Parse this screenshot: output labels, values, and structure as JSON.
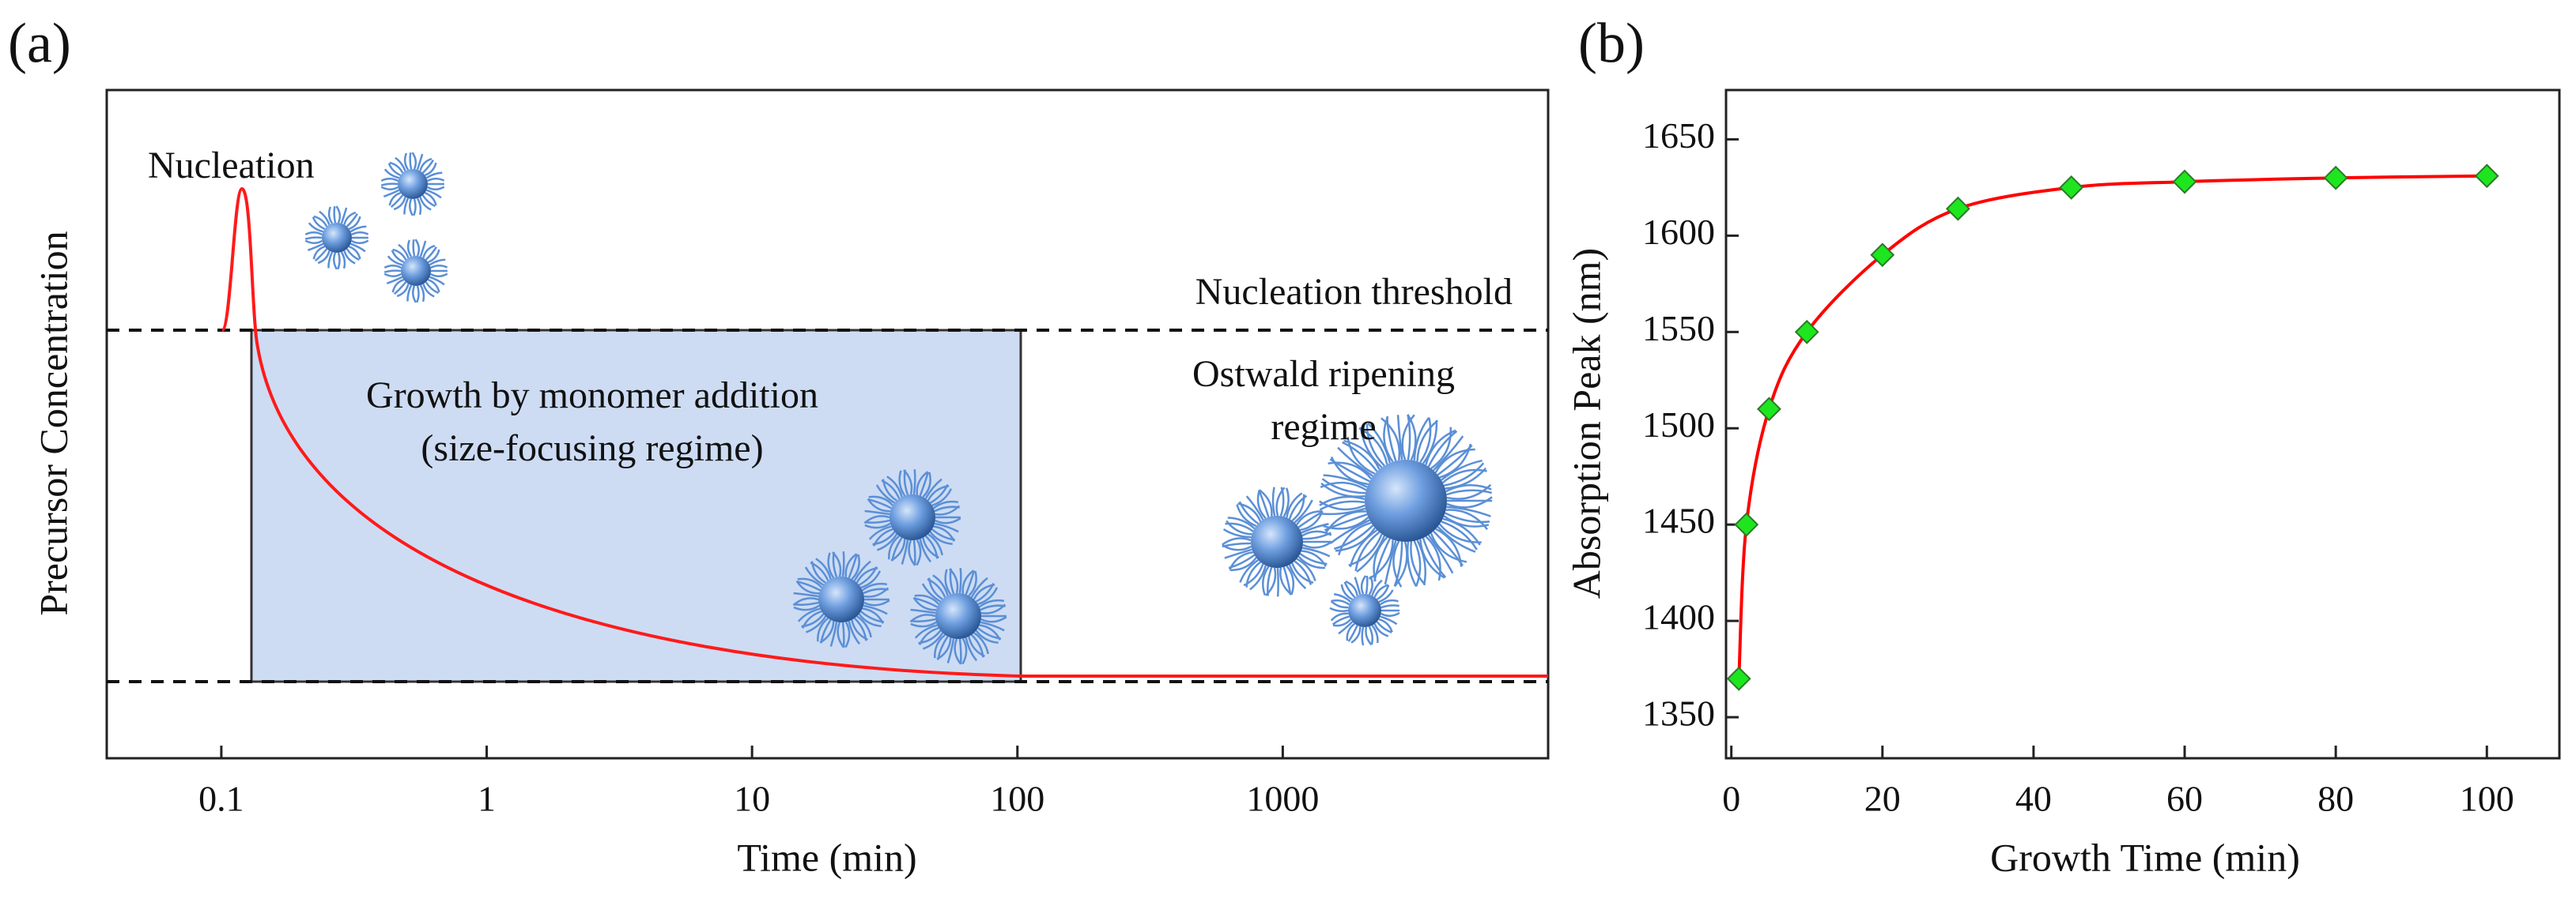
{
  "chart_data": [
    {
      "type": "schematic",
      "panel_label": "(a)",
      "x_label": "Time (min)",
      "y_label": "Precursor Concentration",
      "xscale": "log",
      "xlim": [
        0.037,
        10000
      ],
      "xticks": [
        0.1,
        1,
        10,
        100,
        1000
      ],
      "annotations": [
        "Nucleation",
        "Nucleation threshold",
        "Growth by monomer addition",
        "(size-focusing regime)",
        "Ostwald ripening",
        "regime"
      ]
    },
    {
      "type": "line",
      "panel_label": "(b)",
      "x_label": "Growth Time (min)",
      "y_label": "Absorption Peak (nm)",
      "xlim": [
        -0.7,
        109.6
      ],
      "xticks": [
        0,
        20,
        40,
        60,
        80,
        100
      ],
      "ylim": [
        1328.7,
        1675.6
      ],
      "yticks": [
        1350,
        1400,
        1450,
        1500,
        1550,
        1600,
        1650
      ],
      "x": [
        1,
        2,
        5,
        10,
        20,
        30,
        45,
        60,
        80,
        100
      ],
      "series": [
        {
          "color": "#ff0000",
          "marker_color": "#1ee61e",
          "values": [
            1370,
            1450,
            1510,
            1550,
            1590,
            1614,
            1625,
            1628,
            1630,
            1631
          ]
        }
      ]
    }
  ]
}
